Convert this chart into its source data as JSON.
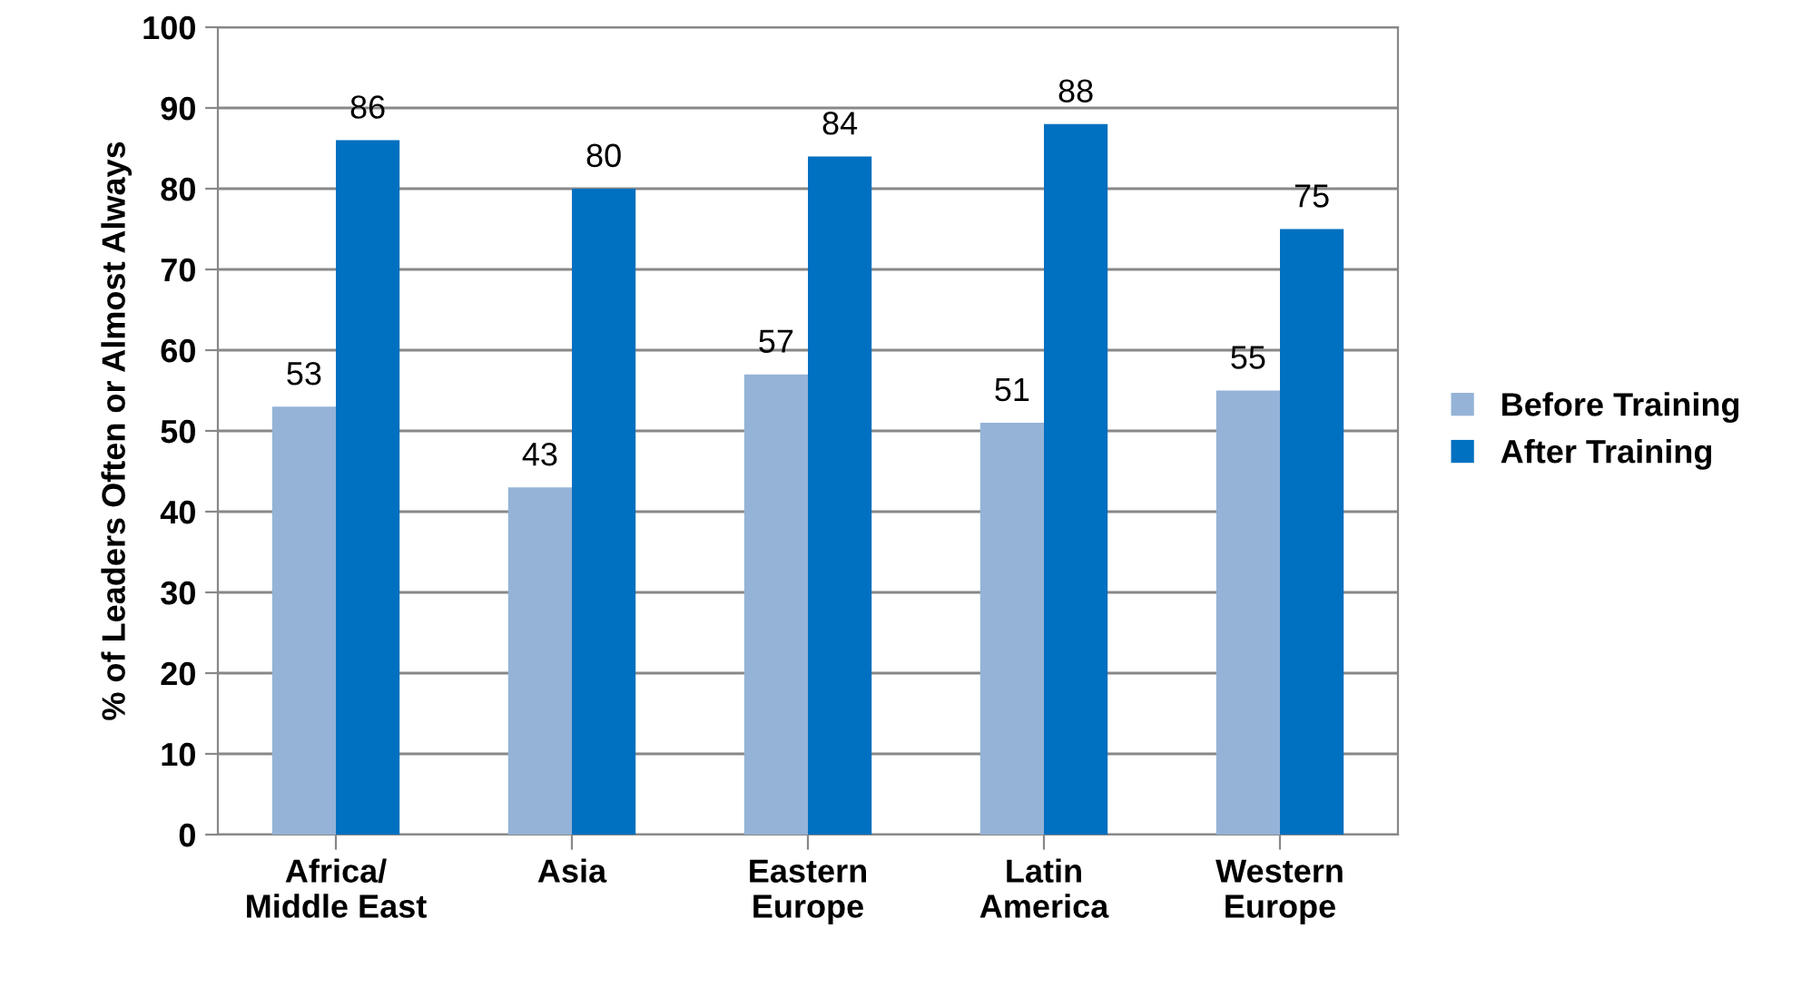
{
  "chart_data": {
    "type": "bar",
    "ylabel": "% of Leaders Often or Almost Always",
    "categories": [
      "Africa/\nMiddle East",
      "Asia",
      "Eastern\nEurope",
      "Latin\nAmerica",
      "Western\nEurope"
    ],
    "series": [
      {
        "name": "Before Training",
        "color": "#95b3d7",
        "values": [
          53,
          43,
          57,
          51,
          55
        ]
      },
      {
        "name": "After Training",
        "color": "#0070c0",
        "values": [
          86,
          80,
          84,
          88,
          75
        ]
      }
    ],
    "ylim": [
      0,
      100
    ],
    "yticks": [
      0,
      10,
      20,
      30,
      40,
      50,
      60,
      70,
      80,
      90,
      100
    ],
    "grid": "y",
    "legend": "right",
    "data_labels": true
  }
}
